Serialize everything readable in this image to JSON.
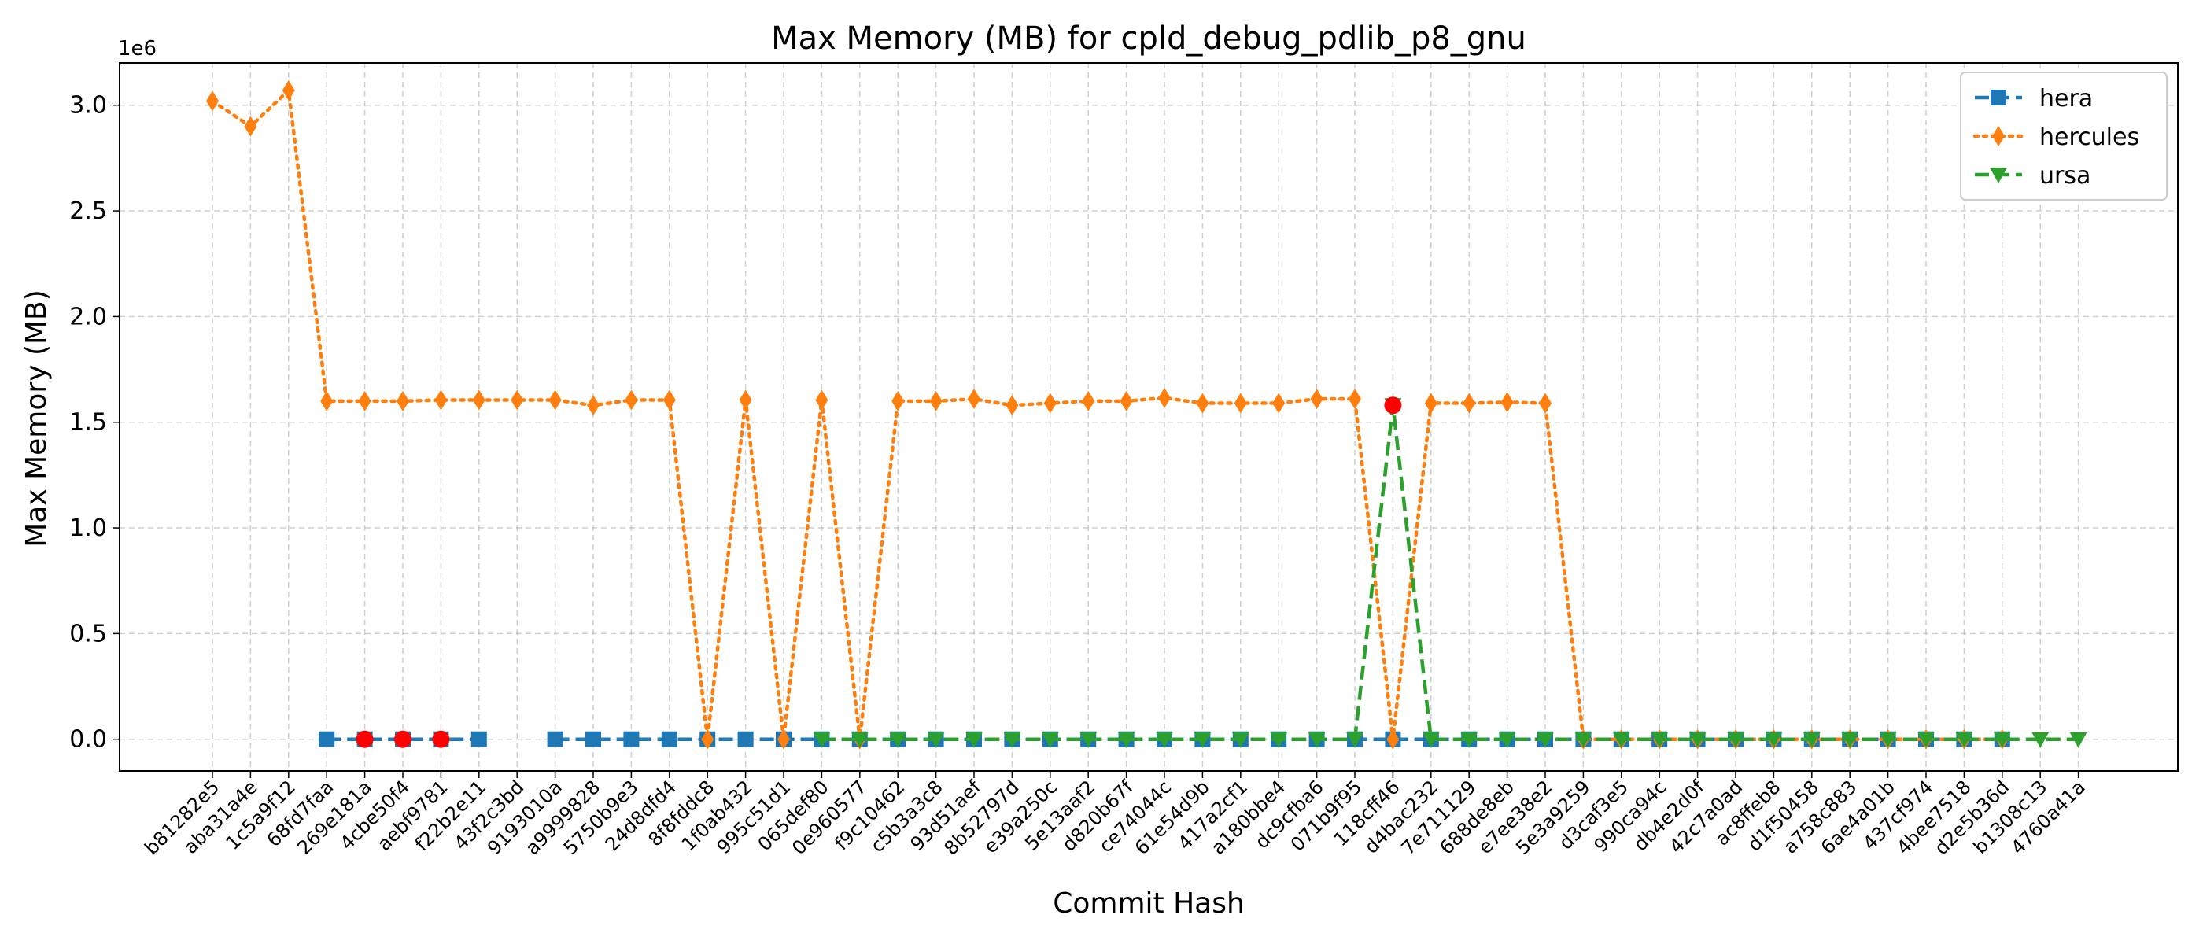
{
  "chart_data": {
    "type": "line",
    "title": "Max Memory (MB) for cpld_debug_pdlib_p8_gnu",
    "xlabel": "Commit Hash",
    "ylabel": "Max Memory (MB)",
    "y_offset_label": "1e6",
    "ylim": [
      -150000,
      3200000
    ],
    "y_scale_factor": 1000000,
    "y_ticks": [
      0,
      500000,
      1000000,
      1500000,
      2000000,
      2500000,
      3000000
    ],
    "y_tick_labels": [
      "0.0",
      "0.5",
      "1.0",
      "1.5",
      "2.0",
      "2.5",
      "3.0"
    ],
    "grid": true,
    "legend_position": "top-right",
    "categories": [
      "b81282e5",
      "aba31a4e",
      "1c5a9f12",
      "68fd7faa",
      "269e181a",
      "4cbe50f4",
      "aebf9781",
      "f22b2e11",
      "43f2c3bd",
      "9193010a",
      "a9999828",
      "5750b9e3",
      "24d8dfd4",
      "8f8fddc8",
      "1f0ab432",
      "995c51d1",
      "065def80",
      "0e960577",
      "f9c10462",
      "c5b3a3c8",
      "93d51aef",
      "8b52797d",
      "e39a250c",
      "5e13aaf2",
      "d820b67f",
      "ce74044c",
      "61e54d9b",
      "417a2cf1",
      "a180bbe4",
      "dc9cfba6",
      "071b9f95",
      "118cff46",
      "d4bac232",
      "7e711129",
      "688de8eb",
      "e7ee38e2",
      "5e3a9259",
      "d3caf3e5",
      "990ca94c",
      "db4e2d0f",
      "42c7a0ad",
      "ac8ffeb8",
      "d1f50458",
      "a758c883",
      "6ae4a01b",
      "437cf974",
      "4bee7518",
      "d2e5b36d",
      "b1308c13",
      "4760a41a"
    ],
    "series": [
      {
        "name": "hera",
        "color": "#1f77b4",
        "line_style": "dashed",
        "marker": "square",
        "values": [
          null,
          null,
          null,
          0,
          0,
          0,
          0,
          0,
          null,
          0,
          0,
          0,
          0,
          0,
          0,
          0,
          0,
          0,
          0,
          0,
          0,
          0,
          0,
          0,
          0,
          0,
          0,
          0,
          0,
          0,
          0,
          0,
          0,
          0,
          0,
          0,
          0,
          0,
          0,
          0,
          0,
          0,
          0,
          0,
          0,
          0,
          0,
          0,
          null,
          null
        ]
      },
      {
        "name": "hercules",
        "color": "#ff7f0e",
        "line_style": "dotted",
        "marker": "diamond",
        "values": [
          3020000,
          2900000,
          3070000,
          1600000,
          1600000,
          1600000,
          1605000,
          1605000,
          1605000,
          1605000,
          1580000,
          1605000,
          1605000,
          0,
          1605000,
          0,
          1605000,
          0,
          1600000,
          1600000,
          1610000,
          1580000,
          1590000,
          1600000,
          1600000,
          1615000,
          1590000,
          1590000,
          1590000,
          1610000,
          1610000,
          0,
          1590000,
          1590000,
          1595000,
          1590000,
          0,
          0,
          0,
          0,
          0,
          0,
          0,
          0,
          0,
          0,
          0,
          0,
          null,
          null
        ]
      },
      {
        "name": "ursa",
        "color": "#2ca02c",
        "line_style": "dashed",
        "marker": "triangle-down",
        "values": [
          null,
          null,
          null,
          null,
          null,
          null,
          null,
          null,
          null,
          null,
          null,
          null,
          null,
          null,
          null,
          null,
          0,
          0,
          0,
          0,
          0,
          0,
          0,
          0,
          0,
          0,
          0,
          0,
          0,
          0,
          0,
          1580000,
          0,
          0,
          0,
          0,
          0,
          0,
          0,
          0,
          0,
          0,
          0,
          0,
          0,
          0,
          0,
          0,
          0,
          0
        ]
      }
    ],
    "highlight_points": [
      {
        "category": "269e181a",
        "value": 0,
        "color": "#ff0000"
      },
      {
        "category": "4cbe50f4",
        "value": 0,
        "color": "#ff0000"
      },
      {
        "category": "aebf9781",
        "value": 0,
        "color": "#ff0000"
      },
      {
        "category": "118cff46",
        "value": 1580000,
        "color": "#ff0000"
      }
    ]
  }
}
